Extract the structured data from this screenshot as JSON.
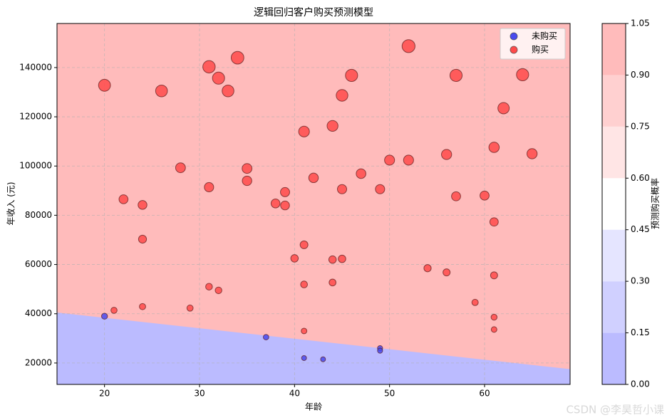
{
  "chart_data": {
    "type": "scatter",
    "title": "逻辑回归客户购买预测模型",
    "x_label": "年龄",
    "y_label": "年收入 (元)",
    "xlim": [
      15,
      69
    ],
    "ylim": [
      11300,
      157900
    ],
    "xticks": [
      20,
      30,
      40,
      50,
      60
    ],
    "yticks": [
      20000,
      40000,
      60000,
      80000,
      100000,
      120000,
      140000
    ],
    "grid": true,
    "legend": "upper right",
    "decision_boundary": {
      "x": [
        15,
        69
      ],
      "y": [
        40500,
        17500
      ]
    },
    "colorbar": {
      "label": "预测购买概率",
      "ticks": [
        {
          "value": 0,
          "label": "0.00"
        },
        {
          "value": 0.15,
          "label": "0.15"
        },
        {
          "value": 0.3,
          "label": "0.30"
        },
        {
          "value": 0.45,
          "label": "0.45"
        },
        {
          "value": 0.6,
          "label": "0.60"
        },
        {
          "value": 0.75,
          "label": "0.75"
        },
        {
          "value": 0.9,
          "label": "0.90"
        },
        {
          "value": 1.05,
          "label": "1.05"
        }
      ],
      "colors": [
        "#bbbbff",
        "#d0d0ff",
        "#e5e5ff",
        "#ffffff",
        "#ffe5e5",
        "#ffd0d0",
        "#ffbbbb"
      ]
    },
    "series": [
      {
        "name": "未购买",
        "color": "#4a4aee",
        "x": [
          20,
          37,
          41,
          43,
          49,
          49
        ],
        "values": [
          39000,
          30500,
          22000,
          21500,
          26000,
          25000
        ]
      },
      {
        "name": "购买",
        "color": "#ff4a4a",
        "x": [
          20,
          21,
          22,
          24,
          24,
          24,
          26,
          28,
          29,
          31,
          31,
          31,
          32,
          32,
          33,
          34,
          35,
          35,
          38,
          39,
          39,
          40,
          41,
          41,
          41,
          41,
          42,
          44,
          44,
          44,
          45,
          45,
          45,
          46,
          47,
          49,
          50,
          52,
          52,
          54,
          56,
          56,
          57,
          57,
          59,
          60,
          61,
          61,
          61,
          61,
          61,
          62,
          64,
          65
        ],
        "values": [
          132800,
          41400,
          86500,
          84200,
          70300,
          42900,
          130500,
          99300,
          42300,
          140300,
          91400,
          51000,
          135700,
          49500,
          130500,
          144000,
          99000,
          94000,
          84800,
          89400,
          84000,
          62500,
          114000,
          68000,
          51900,
          33000,
          95200,
          116300,
          62000,
          52700,
          128700,
          90600,
          62300,
          136800,
          96900,
          90600,
          102400,
          148700,
          102400,
          58500,
          104700,
          56800,
          136800,
          87700,
          44600,
          88000,
          107600,
          77300,
          55600,
          38600,
          33600,
          123500,
          137100,
          105000
        ]
      }
    ],
    "watermark": "CSDN @李昊哲小课"
  }
}
